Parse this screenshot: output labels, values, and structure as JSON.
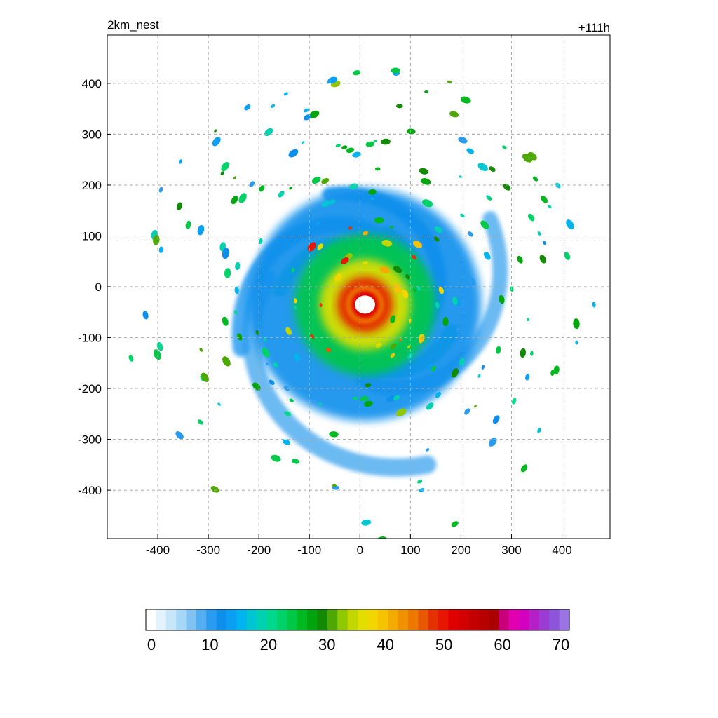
{
  "chart_data": {
    "type": "heatmap",
    "title_left": "2km_nest",
    "title_right": "+111h",
    "xlabel": "",
    "ylabel": "",
    "xlim": [
      -500,
      495
    ],
    "ylim": [
      -495,
      495
    ],
    "x_ticks": [
      -400,
      -300,
      -200,
      -100,
      0,
      100,
      200,
      300,
      400
    ],
    "y_ticks": [
      400,
      300,
      200,
      100,
      0,
      -100,
      -200,
      -300,
      -400
    ],
    "grid": true,
    "colorbar": {
      "range": [
        0,
        70
      ],
      "ticks": [
        0,
        10,
        20,
        30,
        40,
        50,
        60,
        70
      ],
      "colors": [
        "#ffffff",
        "#e3f2fc",
        "#c7e6fa",
        "#a7d7f7",
        "#80c3f2",
        "#52aef0",
        "#2a9cf0",
        "#0f8fec",
        "#0a9ff2",
        "#00b4f0",
        "#00c6d4",
        "#00d1b0",
        "#00d88c",
        "#00d26a",
        "#00c847",
        "#00b81f",
        "#00a40c",
        "#128a04",
        "#4da900",
        "#8fc700",
        "#c2d600",
        "#e2df00",
        "#f2d600",
        "#f5c300",
        "#f4ab00",
        "#f09200",
        "#ec7800",
        "#e85800",
        "#e63200",
        "#e61600",
        "#e00000",
        "#d20000",
        "#c40000",
        "#b80000",
        "#aa0000",
        "#c8007a",
        "#e000b0",
        "#d400c0",
        "#b61ec8",
        "#9a3cd4",
        "#8e55dc",
        "#9c73e6"
      ]
    },
    "storm": {
      "center": [
        10,
        -35
      ],
      "eye_radius_km": 20,
      "reflectivity_scale": "0-70",
      "features": [
        {
          "kind": "eyewall",
          "radius_km": 55,
          "peak_value": 50
        },
        {
          "kind": "inner_band",
          "radius_km": 90,
          "peak_value": 36
        },
        {
          "kind": "spiral_band",
          "radius_km": 140,
          "peak_value": 24
        },
        {
          "kind": "outer_band",
          "radius_km": 230,
          "peak_value": 12
        }
      ]
    }
  }
}
